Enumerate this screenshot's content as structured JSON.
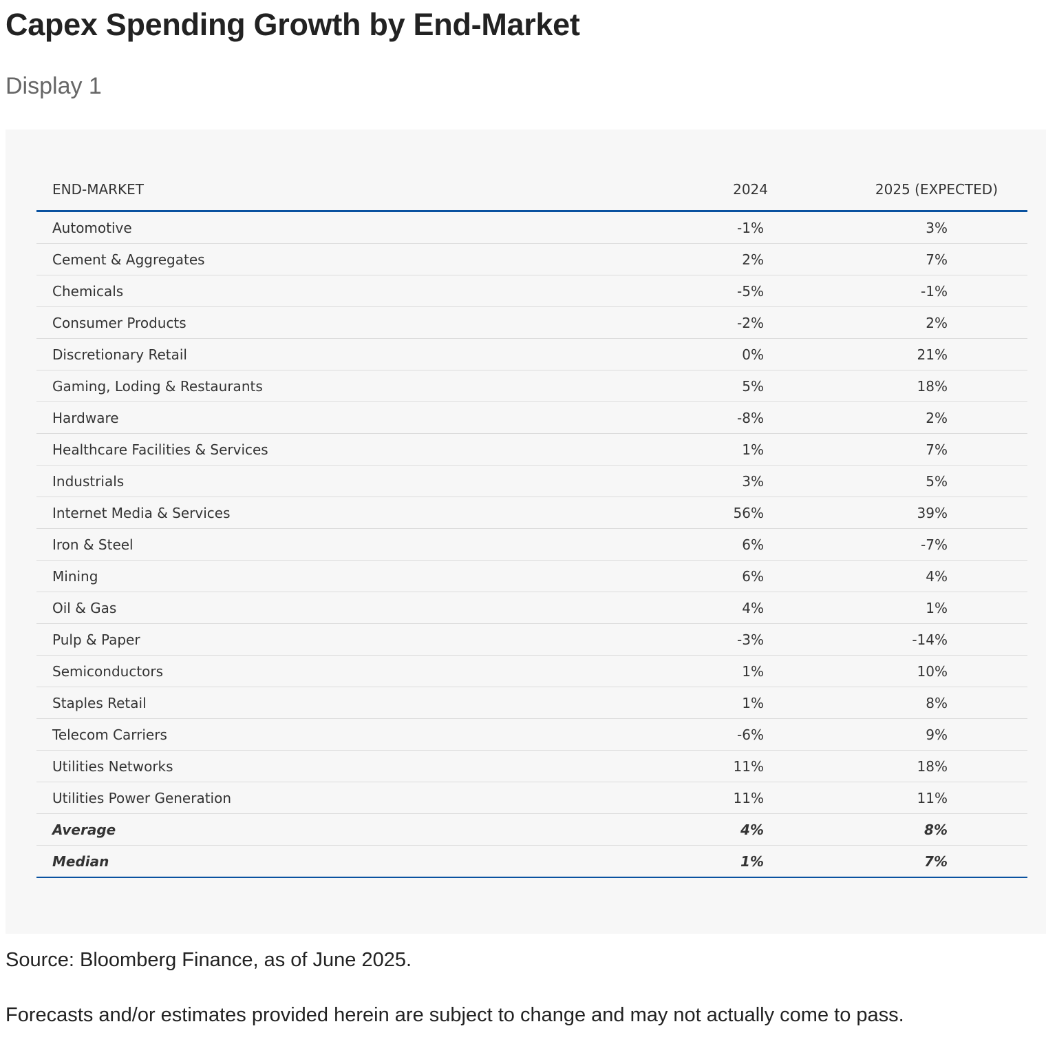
{
  "title": "Capex Spending Growth by End-Market",
  "subtitle": "Display 1",
  "table": {
    "headers": [
      "END-MARKET",
      "2024",
      "2025 (EXPECTED)"
    ],
    "rows": [
      [
        "Automotive",
        "-1%",
        "3%"
      ],
      [
        "Cement & Aggregates",
        "2%",
        "7%"
      ],
      [
        "Chemicals",
        "-5%",
        "-1%"
      ],
      [
        "Consumer Products",
        "-2%",
        "2%"
      ],
      [
        "Discretionary Retail",
        "0%",
        "21%"
      ],
      [
        "Gaming, Loding & Restaurants",
        "5%",
        "18%"
      ],
      [
        "Hardware",
        "-8%",
        "2%"
      ],
      [
        "Healthcare Facilities & Services",
        "1%",
        "7%"
      ],
      [
        "Industrials",
        "3%",
        "5%"
      ],
      [
        "Internet Media & Services",
        "56%",
        "39%"
      ],
      [
        "Iron & Steel",
        "6%",
        "-7%"
      ],
      [
        "Mining",
        "6%",
        "4%"
      ],
      [
        "Oil & Gas",
        "4%",
        "1%"
      ],
      [
        "Pulp & Paper",
        "-3%",
        "-14%"
      ],
      [
        "Semiconductors",
        "1%",
        "10%"
      ],
      [
        "Staples Retail",
        "1%",
        "8%"
      ],
      [
        "Telecom Carriers",
        "-6%",
        "9%"
      ],
      [
        "Utilities Networks",
        "11%",
        "18%"
      ],
      [
        "Utilities Power Generation",
        "11%",
        "11%"
      ]
    ],
    "summary": [
      [
        "Average",
        "4%",
        "8%"
      ],
      [
        "Median",
        "1%",
        "7%"
      ]
    ]
  },
  "source": "Source: Bloomberg Finance, as of June 2025.",
  "disclaimer": "Forecasts and/or estimates provided herein are subject to change and may not actually come to pass.",
  "colors": {
    "accent": "#0a52a0",
    "panel": "#f7f7f7"
  }
}
